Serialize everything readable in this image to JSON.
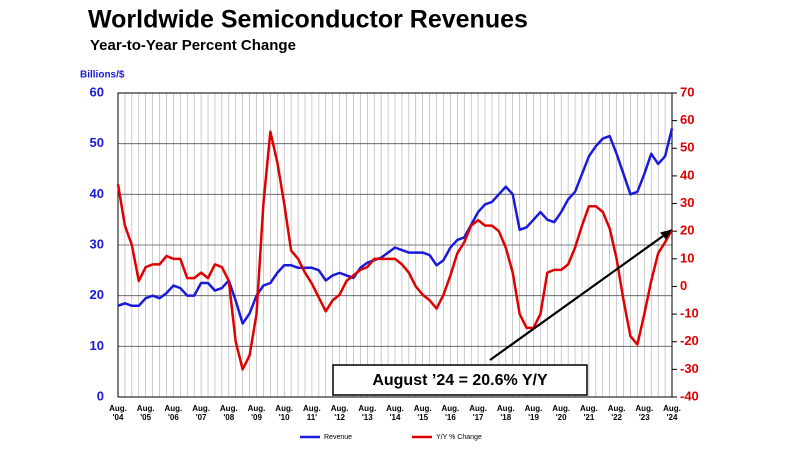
{
  "chart_data": {
    "type": "line",
    "title": "Worldwide Semiconductor Revenues",
    "subtitle": "Year-to-Year Percent Change",
    "y_label": "Billions/$",
    "annotation": "August ’24 = 20.6% Y/Y",
    "categories": [
      "Aug. '04",
      null,
      null,
      null,
      "Aug. '05",
      null,
      null,
      null,
      "Aug. '06",
      null,
      null,
      null,
      "Aug. '07",
      null,
      null,
      null,
      "Aug. '08",
      null,
      null,
      null,
      "Aug. '09",
      null,
      null,
      null,
      "Aug. '10",
      null,
      null,
      null,
      "Aug. 11'",
      null,
      null,
      null,
      "Aug. '12",
      null,
      null,
      null,
      "Aug. '13",
      null,
      null,
      null,
      "Aug. '14",
      null,
      null,
      null,
      "Aug. '15",
      null,
      null,
      null,
      "Aug. '16",
      null,
      null,
      null,
      "Aug. '17",
      null,
      null,
      null,
      "Aug. '18",
      null,
      null,
      null,
      "Aug. '19",
      null,
      null,
      null,
      "Aug. '20",
      null,
      null,
      null,
      "Aug. '21",
      null,
      null,
      null,
      "Aug. '22",
      null,
      null,
      null,
      "Aug. '23",
      null,
      null,
      null,
      "Aug. '24"
    ],
    "series": [
      {
        "name": "Revenue",
        "color": "#1a1adb",
        "axis": "y",
        "values": [
          18,
          18.5,
          18,
          18,
          19.5,
          20,
          19.5,
          20.5,
          22,
          21.5,
          20,
          20,
          22.5,
          22.5,
          21,
          21.5,
          23,
          19,
          14.5,
          16.5,
          20,
          22,
          22.5,
          24.5,
          26,
          26,
          25.5,
          25.5,
          25.5,
          25,
          23,
          24,
          24.5,
          24,
          23.5,
          25.5,
          26.5,
          27,
          27.5,
          28.5,
          29.5,
          29,
          28.5,
          28.5,
          28.5,
          28,
          26,
          27,
          29.5,
          31,
          31.5,
          34,
          36.5,
          38,
          38.5,
          40,
          41.5,
          40,
          33,
          33.5,
          35,
          36.5,
          35,
          34.5,
          36.5,
          39,
          40.5,
          44,
          47.5,
          49.5,
          51,
          51.5,
          48,
          44,
          40,
          40.5,
          44,
          48,
          46,
          47.5,
          53
        ]
      },
      {
        "name": "Y/Y % Change",
        "color": "#e00000",
        "axis": "y2",
        "values": [
          37,
          22,
          15,
          2,
          7,
          8,
          8,
          11,
          10,
          10,
          3,
          3,
          5,
          3,
          8,
          7,
          2,
          -20,
          -30,
          -25,
          -10,
          30,
          56,
          45,
          30,
          13,
          10,
          5,
          1,
          -4,
          -9,
          -5,
          -3,
          2,
          4,
          6,
          7,
          10,
          10,
          10,
          10,
          8,
          5,
          0,
          -3,
          -5,
          -8,
          -3,
          4,
          12,
          16,
          22,
          24,
          22,
          22,
          20,
          14,
          5,
          -10,
          -15,
          -15,
          -10,
          5,
          6,
          6,
          8,
          14,
          22,
          29,
          29,
          27,
          21,
          10,
          -5,
          -18,
          -21,
          -10,
          2,
          12,
          16,
          20.6
        ]
      }
    ],
    "ylim": [
      0,
      60
    ],
    "yticks": [
      0,
      10,
      20,
      30,
      40,
      50,
      60
    ],
    "y2lim": [
      -40,
      70
    ],
    "y2ticks": [
      -40,
      -30,
      -20,
      -10,
      0,
      10,
      20,
      30,
      40,
      50,
      60,
      70
    ],
    "grid": true
  }
}
